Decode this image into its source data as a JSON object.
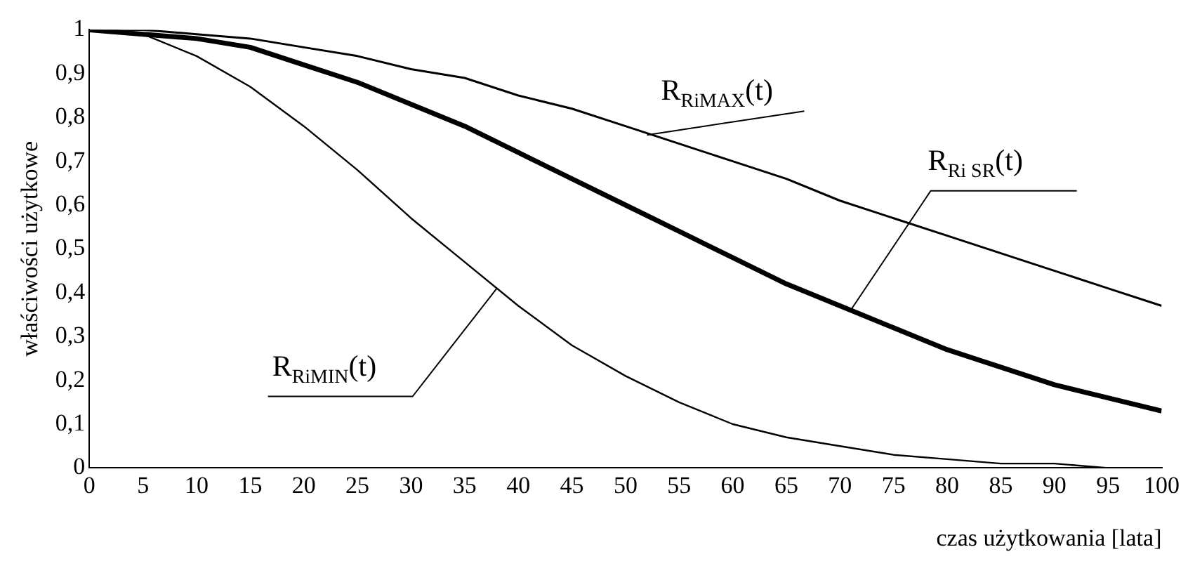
{
  "chart_data": {
    "type": "line",
    "xlabel": "czas użytkowania [lata]",
    "ylabel": "właściwości użytkowe",
    "x": [
      0,
      5,
      10,
      15,
      20,
      25,
      30,
      35,
      40,
      45,
      50,
      55,
      60,
      65,
      70,
      75,
      80,
      85,
      90,
      95,
      100
    ],
    "series": [
      {
        "color": "#000000",
        "values": [
          1,
          1,
          0.99,
          0.98,
          0.96,
          0.94,
          0.91,
          0.89,
          0.85,
          0.82,
          0.78,
          0.74,
          0.7,
          0.66,
          0.61,
          0.57,
          0.53,
          0.49,
          0.45,
          0.41,
          0.37
        ]
      },
      {
        "color": "#000000",
        "values": [
          1,
          0.99,
          0.98,
          0.96,
          0.92,
          0.88,
          0.83,
          0.78,
          0.72,
          0.66,
          0.6,
          0.54,
          0.48,
          0.42,
          0.37,
          0.32,
          0.27,
          0.23,
          0.19,
          0.16,
          0.13
        ]
      },
      {
        "color": "#000000",
        "values": [
          1,
          0.99,
          0.94,
          0.87,
          0.78,
          0.68,
          0.57,
          0.47,
          0.37,
          0.28,
          0.21,
          0.15,
          0.1,
          0.07,
          0.05,
          0.03,
          0.02,
          0.01,
          0.01,
          0,
          0
        ]
      }
    ],
    "xlim": [
      0,
      100
    ],
    "xticks": [
      0,
      5,
      10,
      15,
      20,
      25,
      30,
      35,
      40,
      45,
      50,
      55,
      60,
      65,
      70,
      75,
      80,
      85,
      90,
      95,
      100
    ],
    "ylim": [
      0,
      1
    ],
    "yticks": [
      0,
      {
        "value": 0.1,
        "label": "0,1"
      },
      {
        "value": 0.2,
        "label": "0,2"
      },
      {
        "value": 0.3,
        "label": "0,3"
      },
      {
        "value": 0.4,
        "label": "0,4"
      },
      {
        "value": 0.5,
        "label": "0,5"
      },
      {
        "value": 0.6,
        "label": "0,6"
      },
      {
        "value": 0.7,
        "label": "0,7"
      },
      {
        "value": 0.8,
        "label": "0,8"
      },
      {
        "value": 0.9,
        "label": "0,9"
      },
      1
    ],
    "grid": false,
    "legend": false,
    "marker": "none",
    "line_style": "solid",
    "annotations": [
      {
        "text": "R$_{RiMAX}$(t)",
        "x": 52,
        "y": 0.76
      },
      {
        "text": "R$_{Ri SR}$(t)",
        "x": 71,
        "y": 0.36
      },
      {
        "text": "R$_{RiMIN}$(t)",
        "x": 38,
        "y": 0.41
      }
    ]
  }
}
